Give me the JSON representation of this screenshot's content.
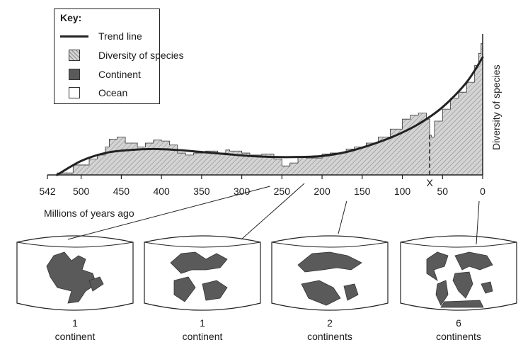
{
  "key": {
    "title": "Key:",
    "items": [
      {
        "label": "Trend line",
        "swatch": "line"
      },
      {
        "label": "Diversity of species",
        "swatch": "diversity"
      },
      {
        "label": "Continent",
        "swatch": "continent"
      },
      {
        "label": "Ocean",
        "swatch": "ocean"
      }
    ]
  },
  "colors": {
    "trend": "#222222",
    "diversity_fill": "#d4d4d4",
    "hatch": "#8a8a8a",
    "continent": "#5a5a5a",
    "ocean": "#ffffff"
  },
  "chart_data": {
    "type": "area",
    "xlabel": "Millions of years ago",
    "ylabel": "Diversity of species",
    "x_reversed": true,
    "xlim": [
      542,
      0
    ],
    "x_ticks": [
      542,
      500,
      450,
      400,
      350,
      300,
      250,
      200,
      150,
      100,
      50,
      0
    ],
    "marker": {
      "label": "X",
      "x": 66
    },
    "series": [
      {
        "name": "Diversity of species",
        "x": [
          530,
          510,
          490,
          480,
          470,
          465,
          455,
          445,
          430,
          420,
          410,
          400,
          390,
          380,
          370,
          360,
          345,
          330,
          320,
          315,
          300,
          290,
          275,
          260,
          250,
          240,
          230,
          220,
          210,
          200,
          190,
          180,
          170,
          160,
          145,
          130,
          115,
          100,
          90,
          80,
          70,
          66,
          64,
          60,
          50,
          40,
          30,
          20,
          10,
          5,
          2,
          0
        ],
        "y": [
          2,
          10,
          16,
          20,
          28,
          36,
          38,
          32,
          28,
          32,
          35,
          34,
          30,
          22,
          20,
          22,
          24,
          22,
          25,
          24,
          22,
          20,
          21,
          16,
          9,
          12,
          18,
          17,
          17,
          21,
          22,
          22,
          26,
          28,
          32,
          38,
          46,
          56,
          60,
          62,
          56,
          40,
          38,
          54,
          66,
          77,
          83,
          93,
          110,
          122,
          132,
          130
        ]
      },
      {
        "name": "Trend line",
        "x": [
          530,
          500,
          470,
          440,
          410,
          380,
          350,
          320,
          290,
          260,
          230,
          200,
          170,
          140,
          110,
          80,
          50,
          20,
          0
        ],
        "y": [
          0,
          14,
          22,
          25,
          26,
          25,
          23,
          21,
          19,
          18,
          18,
          19,
          23,
          30,
          39,
          51,
          68,
          93,
          118
        ]
      }
    ],
    "ylim": [
      0,
      140
    ]
  },
  "globes": [
    {
      "count": "1",
      "unit": "continent",
      "time": 300
    },
    {
      "count": "1",
      "unit": "continent",
      "time": 200
    },
    {
      "count": "2",
      "unit": "continents",
      "time": 150
    },
    {
      "count": "6",
      "unit": "continents",
      "time": 0
    }
  ]
}
